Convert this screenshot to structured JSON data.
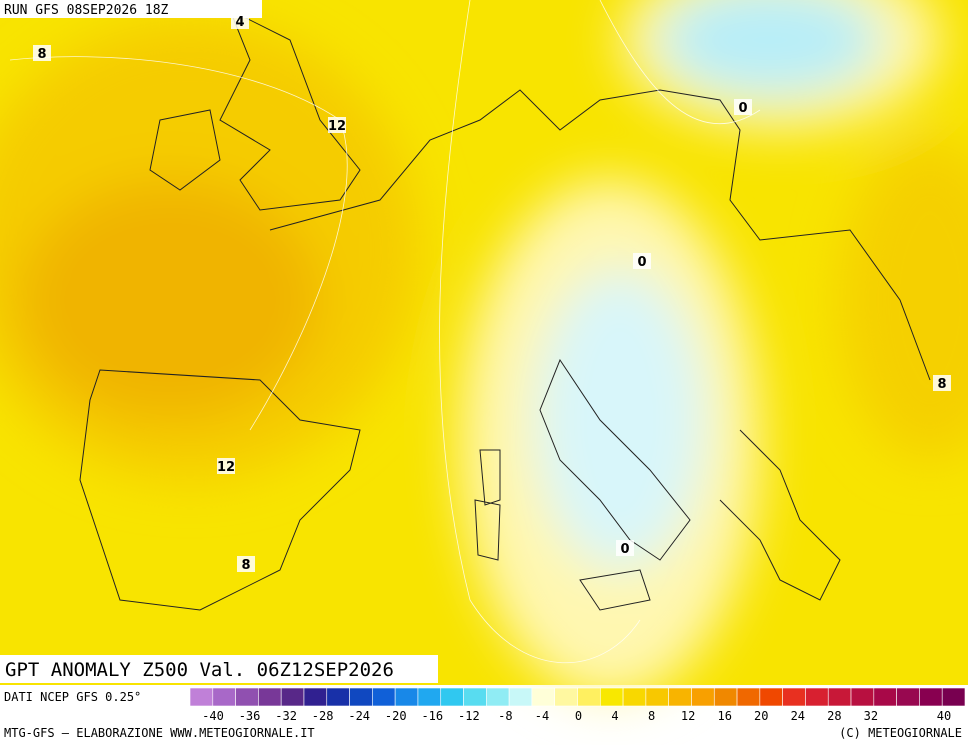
{
  "header": {
    "run": "RUN GFS 08SEP2026 18Z"
  },
  "map": {
    "contour_labels": [
      "4",
      "8",
      "12",
      "0",
      "0",
      "0",
      "8",
      "12",
      "8"
    ]
  },
  "title": "GPT ANOMALY Z500 Val. 06Z12SEP2026",
  "colorbar": {
    "source": "DATI NCEP GFS 0.25°",
    "ticks": [
      -40,
      -36,
      -32,
      -28,
      -24,
      -20,
      -16,
      -12,
      -8,
      -4,
      0,
      4,
      8,
      12,
      16,
      20,
      24,
      28,
      32,
      40
    ],
    "colors": [
      "#c080d8",
      "#a868c8",
      "#9050b0",
      "#783898",
      "#582888",
      "#302090",
      "#1830a8",
      "#1048c0",
      "#1060d8",
      "#1888e8",
      "#20a8f0",
      "#30c8f0",
      "#58dcf0",
      "#90ecf4",
      "#c8f8f8",
      "#ffffd8",
      "#fff8a0",
      "#fff060",
      "#f8e800",
      "#f8d800",
      "#f8c800",
      "#f8b400",
      "#f8a000",
      "#f08800",
      "#f06800",
      "#f04800",
      "#e83020",
      "#d82030",
      "#c81838",
      "#b81040",
      "#a80848",
      "#980850",
      "#880050",
      "#780050"
    ]
  },
  "footer": {
    "left": "MTG-GFS — ELABORAZIONE WWW.METEOGIORNALE.IT",
    "right": "(C) METEOGIORNALE"
  }
}
